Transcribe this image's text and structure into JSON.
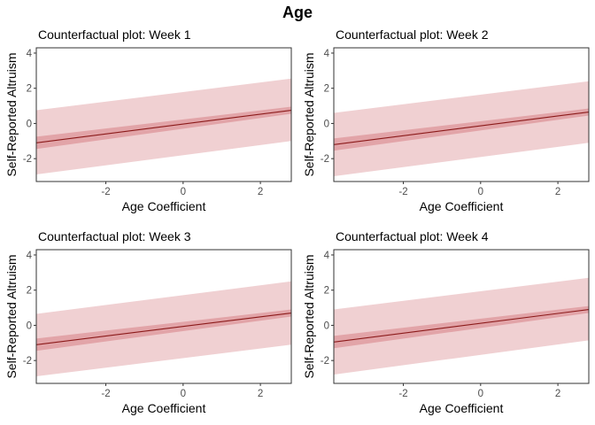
{
  "figure": {
    "title": "Age"
  },
  "colors": {
    "outer_band": "#f0d0d2",
    "inner_band": "#e2a4a8",
    "line": "#8b1a1a",
    "tick_text": "#4d4d4d",
    "axis": "#333333"
  },
  "chart_data": [
    {
      "type": "line",
      "title": "Counterfactual plot: Week 1",
      "xlabel": "Age Coefficient",
      "ylabel": "Self-Reported Altruism",
      "xlim": [
        -3.8,
        2.8
      ],
      "ylim": [
        -3.3,
        4.3
      ],
      "xticks": [
        -2,
        0,
        2
      ],
      "yticks": [
        -2,
        0,
        2,
        4
      ],
      "grid": false,
      "legend": "none",
      "x": [
        -3.8,
        2.8
      ],
      "y": [
        -1.1,
        0.75
      ],
      "inner_lower": [
        -1.45,
        0.55
      ],
      "inner_upper": [
        -0.75,
        0.95
      ],
      "outer_lower": [
        -2.9,
        -1.0
      ],
      "outer_upper": [
        0.75,
        2.55
      ]
    },
    {
      "type": "line",
      "title": "Counterfactual plot: Week 2",
      "xlabel": "Age Coefficient",
      "ylabel": "Self-Reported Altruism",
      "xlim": [
        -3.8,
        2.8
      ],
      "ylim": [
        -3.3,
        4.3
      ],
      "xticks": [
        -2,
        0,
        2
      ],
      "yticks": [
        -2,
        0,
        2,
        4
      ],
      "grid": false,
      "legend": "none",
      "x": [
        -3.8,
        2.8
      ],
      "y": [
        -1.2,
        0.65
      ],
      "inner_lower": [
        -1.55,
        0.45
      ],
      "inner_upper": [
        -0.85,
        0.85
      ],
      "outer_lower": [
        -3.0,
        -1.1
      ],
      "outer_upper": [
        0.6,
        2.4
      ]
    },
    {
      "type": "line",
      "title": "Counterfactual plot: Week 3",
      "xlabel": "Age Coefficient",
      "ylabel": "Self-Reported Altruism",
      "xlim": [
        -3.8,
        2.8
      ],
      "ylim": [
        -3.3,
        4.3
      ],
      "xticks": [
        -2,
        0,
        2
      ],
      "yticks": [
        -2,
        0,
        2,
        4
      ],
      "grid": false,
      "legend": "none",
      "x": [
        -3.8,
        2.8
      ],
      "y": [
        -1.1,
        0.7
      ],
      "inner_lower": [
        -1.45,
        0.5
      ],
      "inner_upper": [
        -0.75,
        0.9
      ],
      "outer_lower": [
        -2.9,
        -1.1
      ],
      "outer_upper": [
        0.65,
        2.5
      ]
    },
    {
      "type": "line",
      "title": "Counterfactual plot: Week 4",
      "xlabel": "Age Coefficient",
      "ylabel": "Self-Reported Altruism",
      "xlim": [
        -3.8,
        2.8
      ],
      "ylim": [
        -3.3,
        4.3
      ],
      "xticks": [
        -2,
        0,
        2
      ],
      "yticks": [
        -2,
        0,
        2,
        4
      ],
      "grid": false,
      "legend": "none",
      "x": [
        -3.8,
        2.8
      ],
      "y": [
        -0.95,
        0.9
      ],
      "inner_lower": [
        -1.3,
        0.7
      ],
      "inner_upper": [
        -0.6,
        1.1
      ],
      "outer_lower": [
        -2.8,
        -0.85
      ],
      "outer_upper": [
        0.9,
        2.7
      ]
    }
  ]
}
